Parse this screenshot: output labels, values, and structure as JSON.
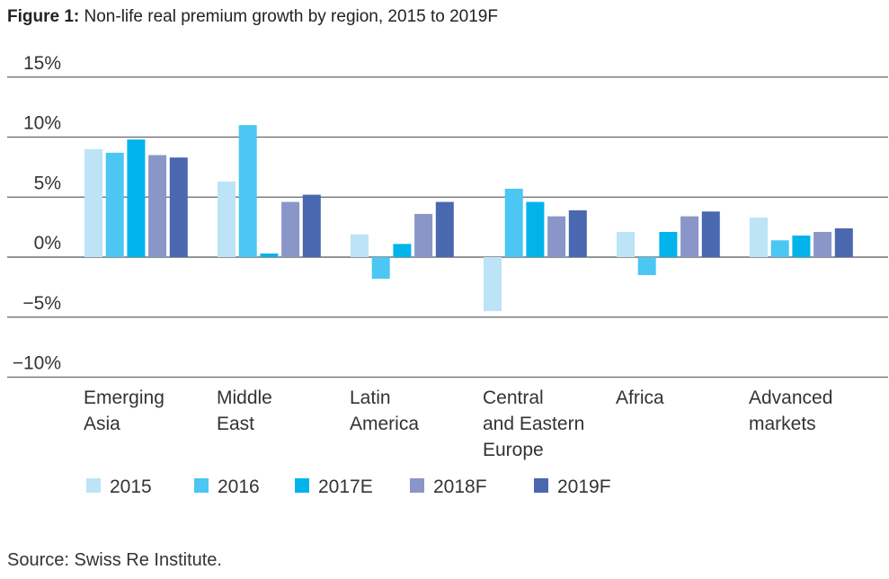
{
  "chart_data": {
    "type": "bar",
    "title_prefix": "Figure 1:",
    "title": "Non-life real premium growth by region, 2015 to 2019F",
    "xlabel": "",
    "ylabel": "",
    "ylim": [
      -10,
      15
    ],
    "yticks": [
      15,
      10,
      5,
      0,
      -5,
      -10
    ],
    "ytick_labels": [
      "15%",
      "10%",
      "5%",
      "0%",
      "−5%",
      "−10%"
    ],
    "grid": true,
    "legend_position": "bottom-left",
    "categories": [
      [
        "Emerging",
        "Asia"
      ],
      [
        "Middle",
        "East"
      ],
      [
        "Latin",
        "America"
      ],
      [
        "Central",
        "and Eastern",
        "Europe"
      ],
      [
        "Africa"
      ],
      [
        "Advanced",
        "markets"
      ]
    ],
    "series": [
      {
        "name": "2015",
        "color": "#bde3f7",
        "values": [
          9.0,
          6.3,
          1.9,
          -4.5,
          2.1,
          3.3
        ]
      },
      {
        "name": "2016",
        "color": "#4cc6f2",
        "values": [
          8.7,
          11.0,
          -1.8,
          5.7,
          -1.5,
          1.4
        ]
      },
      {
        "name": "2017E",
        "color": "#00b4eb",
        "values": [
          9.8,
          0.3,
          1.1,
          4.6,
          2.1,
          1.8
        ]
      },
      {
        "name": "2018F",
        "color": "#8a96c8",
        "values": [
          8.5,
          4.6,
          3.6,
          3.4,
          3.4,
          2.1
        ]
      },
      {
        "name": "2019F",
        "color": "#4a68b0",
        "values": [
          8.3,
          5.2,
          4.6,
          3.9,
          3.8,
          2.4
        ]
      }
    ]
  },
  "source": "Source: Swiss Re Institute."
}
